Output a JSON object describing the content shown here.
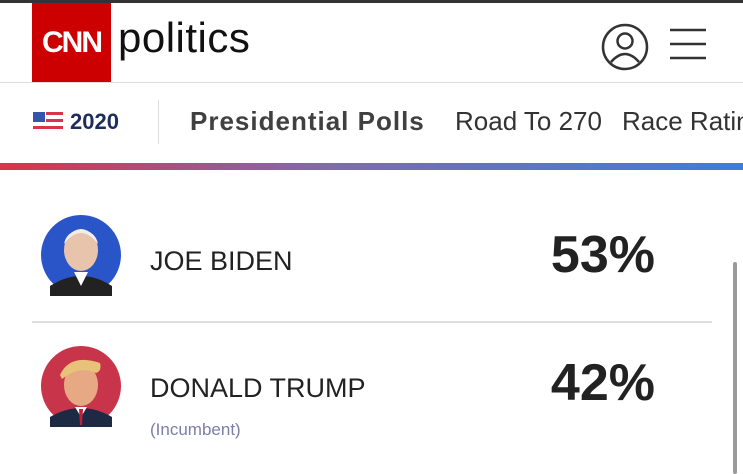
{
  "header": {
    "logo": "CNN",
    "section": "politics"
  },
  "nav": {
    "year": "2020",
    "items": [
      "Presidential Polls",
      "Road To 270",
      "Race Ratings"
    ]
  },
  "candidates": [
    {
      "name": "JOE BIDEN",
      "percent": "53%"
    },
    {
      "name": "DONALD TRUMP",
      "percent": "42%",
      "note": "(Incumbent)"
    }
  ]
}
